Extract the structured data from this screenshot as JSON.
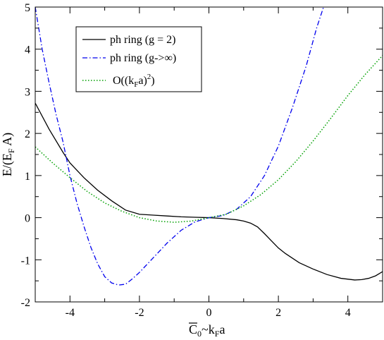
{
  "chart_data": {
    "type": "line",
    "xlabel": "C̄₀~k_F a",
    "ylabel": "E/(E_F A)",
    "xlim": [
      -5,
      5
    ],
    "ylim": [
      -2,
      5
    ],
    "xticks": [
      -4,
      -2,
      0,
      2,
      4
    ],
    "yticks": [
      -2,
      -1,
      0,
      1,
      2,
      3,
      4,
      5
    ],
    "legend_position": "top-left",
    "series": [
      {
        "name": "ph ring (g = 2)",
        "style": "solid",
        "color": "#000000",
        "x": [
          -5,
          -4.6,
          -4.2,
          -4.0,
          -3.6,
          -3.2,
          -2.8,
          -2.4,
          -2.0,
          -1.6,
          -1.2,
          -0.8,
          -0.4,
          0.0,
          0.4,
          0.8,
          1.0,
          1.2,
          1.4,
          1.6,
          1.8,
          2.0,
          2.2,
          2.6,
          3.0,
          3.4,
          3.8,
          4.2,
          4.4,
          4.6,
          4.8,
          5.0
        ],
        "y": [
          2.72,
          2.1,
          1.55,
          1.3,
          0.95,
          0.65,
          0.4,
          0.18,
          0.08,
          0.06,
          0.04,
          0.02,
          0.01,
          0.0,
          -0.02,
          -0.05,
          -0.08,
          -0.13,
          -0.22,
          -0.38,
          -0.55,
          -0.72,
          -0.85,
          -1.07,
          -1.22,
          -1.35,
          -1.44,
          -1.48,
          -1.47,
          -1.44,
          -1.38,
          -1.28
        ]
      },
      {
        "name": "ph ring (g->∞)",
        "style": "dash-dot",
        "color": "#0000ee",
        "x": [
          -5,
          -4.8,
          -4.6,
          -4.4,
          -4.2,
          -4.0,
          -3.8,
          -3.6,
          -3.4,
          -3.2,
          -3.0,
          -2.8,
          -2.6,
          -2.4,
          -2.2,
          -2.0,
          -1.6,
          -1.2,
          -0.8,
          -0.4,
          0.0,
          0.4,
          0.8,
          1.2,
          1.6,
          2.0,
          2.4,
          2.8,
          3.1,
          3.3
        ],
        "y": [
          5.0,
          4.0,
          3.2,
          2.45,
          1.8,
          1.0,
          0.35,
          -0.2,
          -0.7,
          -1.1,
          -1.4,
          -1.55,
          -1.6,
          -1.58,
          -1.45,
          -1.3,
          -0.95,
          -0.6,
          -0.3,
          -0.1,
          0.0,
          0.05,
          0.2,
          0.5,
          1.0,
          1.7,
          2.6,
          3.6,
          4.5,
          5.0
        ]
      },
      {
        "name": "O((k_F a)^2)",
        "style": "dotted",
        "color": "#00a000",
        "x": [
          -5,
          -4.5,
          -4,
          -3.5,
          -3,
          -2.5,
          -2,
          -1.5,
          -1,
          -0.5,
          0,
          0.5,
          1,
          1.5,
          2,
          2.5,
          3,
          3.5,
          4,
          4.5,
          5
        ],
        "y": [
          1.68,
          1.3,
          0.95,
          0.62,
          0.35,
          0.15,
          -0.0,
          -0.08,
          -0.11,
          -0.08,
          0.0,
          0.08,
          0.28,
          0.55,
          0.9,
          1.33,
          1.82,
          2.35,
          2.9,
          3.4,
          3.85
        ]
      }
    ]
  }
}
